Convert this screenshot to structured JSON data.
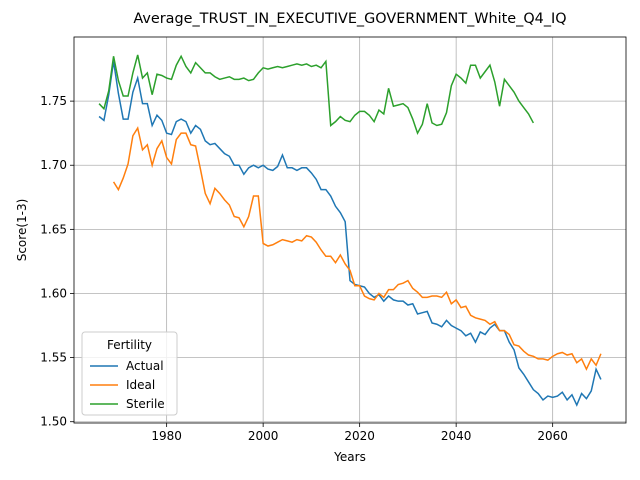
{
  "chart_data": {
    "type": "line",
    "title": "Average_TRUST_IN_EXECUTIVE_GOVERNMENT_White_Q4_IQ",
    "xlabel": "Years",
    "ylabel": "Score(1-3)",
    "legend_title": "Fertility",
    "legend": "lower left",
    "grid": true,
    "x": [
      1966,
      1967,
      1968,
      1969,
      1970,
      1971,
      1972,
      1973,
      1974,
      1975,
      1976,
      1977,
      1978,
      1979,
      1980,
      1981,
      1982,
      1983,
      1984,
      1985,
      1986,
      1987,
      1988,
      1989,
      1990,
      1991,
      1992,
      1993,
      1994,
      1995,
      1996,
      1997,
      1998,
      1999,
      2000,
      2001,
      2002,
      2003,
      2004,
      2005,
      2006,
      2007,
      2008,
      2009,
      2010,
      2011,
      2012,
      2013,
      2014,
      2015,
      2016,
      2017,
      2018,
      2019,
      2020,
      2021,
      2022,
      2023,
      2024,
      2025,
      2026,
      2027,
      2028,
      2029,
      2030,
      2031,
      2032,
      2033,
      2034,
      2035,
      2036,
      2037,
      2038,
      2039,
      2040,
      2041,
      2042,
      2043,
      2044,
      2045,
      2046,
      2047,
      2048,
      2049,
      2050,
      2051,
      2052,
      2053,
      2054,
      2055,
      2056,
      2057,
      2058,
      2059,
      2060,
      2061,
      2062,
      2063,
      2064,
      2065,
      2066,
      2067,
      2068,
      2069,
      2070
    ],
    "series": [
      {
        "name": "Actual",
        "color": "#1f77b4",
        "values": [
          1.738,
          1.735,
          1.755,
          1.781,
          1.756,
          1.736,
          1.736,
          1.757,
          1.768,
          1.748,
          1.748,
          1.731,
          1.739,
          1.735,
          1.725,
          1.724,
          1.734,
          1.736,
          1.734,
          1.725,
          1.731,
          1.728,
          1.719,
          1.716,
          1.717,
          1.713,
          1.709,
          1.707,
          1.7,
          1.7,
          1.693,
          1.698,
          1.7,
          1.698,
          1.7,
          1.697,
          1.696,
          1.699,
          1.708,
          1.698,
          1.698,
          1.696,
          1.698,
          1.698,
          1.694,
          1.689,
          1.681,
          1.681,
          1.676,
          1.668,
          1.663,
          1.656,
          1.61,
          1.607,
          1.606,
          1.605,
          1.6,
          1.597,
          1.599,
          1.594,
          1.598,
          1.595,
          1.594,
          1.594,
          1.591,
          1.592,
          1.584,
          1.585,
          1.586,
          1.577,
          1.576,
          1.574,
          1.579,
          1.575,
          1.573,
          1.571,
          1.567,
          1.569,
          1.562,
          1.57,
          1.568,
          1.573,
          1.576,
          1.571,
          1.571,
          1.562,
          1.556,
          1.542,
          1.537,
          1.531,
          1.525,
          1.522,
          1.517,
          1.52,
          1.519,
          1.52,
          1.523,
          1.517,
          1.521,
          1.513,
          1.522,
          1.518,
          1.524,
          1.541,
          1.533
        ]
      },
      {
        "name": "Ideal",
        "color": "#ff7f0e",
        "values": [
          null,
          null,
          null,
          1.687,
          1.681,
          1.69,
          1.701,
          1.723,
          1.729,
          1.712,
          1.716,
          1.7,
          1.713,
          1.719,
          1.706,
          1.701,
          1.72,
          1.725,
          1.725,
          1.716,
          1.715,
          1.697,
          1.678,
          1.67,
          1.682,
          1.678,
          1.673,
          1.669,
          1.66,
          1.659,
          1.652,
          1.66,
          1.676,
          1.676,
          1.639,
          1.637,
          1.638,
          1.64,
          1.642,
          1.641,
          1.64,
          1.642,
          1.641,
          1.645,
          1.644,
          1.64,
          1.634,
          1.629,
          1.629,
          1.624,
          1.63,
          1.623,
          1.618,
          1.606,
          1.606,
          1.598,
          1.596,
          1.595,
          1.6,
          1.597,
          1.603,
          1.603,
          1.607,
          1.608,
          1.61,
          1.604,
          1.601,
          1.597,
          1.597,
          1.598,
          1.598,
          1.597,
          1.601,
          1.592,
          1.595,
          1.589,
          1.59,
          1.583,
          1.581,
          1.58,
          1.579,
          1.576,
          1.578,
          1.571,
          1.571,
          1.568,
          1.56,
          1.559,
          1.555,
          1.552,
          1.551,
          1.549,
          1.549,
          1.548,
          1.551,
          1.553,
          1.554,
          1.552,
          1.553,
          1.546,
          1.549,
          1.541,
          1.549,
          1.544,
          1.553
        ]
      },
      {
        "name": "Sterile",
        "color": "#2ca02c",
        "values": [
          1.748,
          1.744,
          1.758,
          1.785,
          1.766,
          1.754,
          1.754,
          1.772,
          1.786,
          1.768,
          1.772,
          1.755,
          1.771,
          1.77,
          1.768,
          1.767,
          1.778,
          1.785,
          1.777,
          1.772,
          1.78,
          1.776,
          1.772,
          1.772,
          1.769,
          1.767,
          1.768,
          1.769,
          1.767,
          1.767,
          1.768,
          1.766,
          1.767,
          1.772,
          1.776,
          1.775,
          1.776,
          1.777,
          1.776,
          1.777,
          1.778,
          1.779,
          1.778,
          1.779,
          1.777,
          1.778,
          1.776,
          1.781,
          1.731,
          1.734,
          1.738,
          1.735,
          1.734,
          1.739,
          1.742,
          1.742,
          1.739,
          1.734,
          1.743,
          1.74,
          1.76,
          1.746,
          1.747,
          1.748,
          1.745,
          1.736,
          1.725,
          1.732,
          1.748,
          1.733,
          1.731,
          1.732,
          1.741,
          1.762,
          1.771,
          1.768,
          1.764,
          1.778,
          1.778,
          1.768,
          1.773,
          1.778,
          1.765,
          1.746,
          1.767,
          1.762,
          1.757,
          1.75,
          1.745,
          1.74,
          1.733,
          null,
          null,
          null,
          null,
          null,
          null,
          null,
          null,
          null,
          null,
          null,
          null,
          null,
          null
        ]
      }
    ],
    "xlim": [
      1960.8,
      2075.2
    ],
    "xticks": [
      1980,
      2000,
      2020,
      2040,
      2060
    ],
    "ylim": [
      1.499,
      1.8
    ],
    "yticks": [
      {
        "value": 1.5,
        "label": "1.50"
      },
      1.55,
      {
        "value": 1.6,
        "label": "1.60"
      },
      1.65,
      {
        "value": 1.7,
        "label": "1.70"
      },
      1.75
    ]
  }
}
